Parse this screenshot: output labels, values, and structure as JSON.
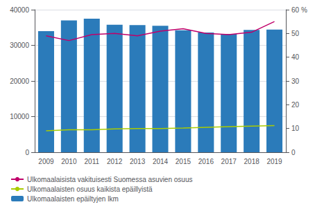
{
  "chart_data": {
    "type": "bar",
    "categories": [
      "2009",
      "2010",
      "2011",
      "2012",
      "2013",
      "2014",
      "2015",
      "2016",
      "2017",
      "2018",
      "2019"
    ],
    "series": [
      {
        "name": "Ulkomaalaisista vakituisesti Suomessa asuvien osuus",
        "type": "line",
        "axis": "y2",
        "color": "#c0006a",
        "values": [
          49,
          47,
          49.5,
          50,
          49,
          51,
          52,
          50,
          49.5,
          50.5,
          55
        ]
      },
      {
        "name": "Ulkomaalaisten osuus kaikista epäillyistä",
        "type": "line",
        "axis": "y2",
        "color": "#aacc00",
        "values": [
          9,
          9.5,
          9.5,
          9.8,
          10,
          10,
          10.2,
          10.5,
          10.8,
          11,
          11.2
        ]
      },
      {
        "name": "Ulkomaalaisten epäiltyjen lkm",
        "type": "bar",
        "color": "#2b7bba",
        "values": [
          34000,
          37000,
          37500,
          35800,
          35700,
          35500,
          34200,
          33600,
          33200,
          34300,
          34400
        ]
      }
    ],
    "ylim": [
      0,
      40000
    ],
    "yticks": [
      0,
      10000,
      20000,
      30000,
      40000
    ],
    "y2lim": [
      0,
      60
    ],
    "y2ticks": [
      0,
      10,
      20,
      30,
      40,
      50,
      {
        "value": 60,
        "label": "60 %"
      }
    ],
    "grid": true,
    "legend": "lower left"
  }
}
